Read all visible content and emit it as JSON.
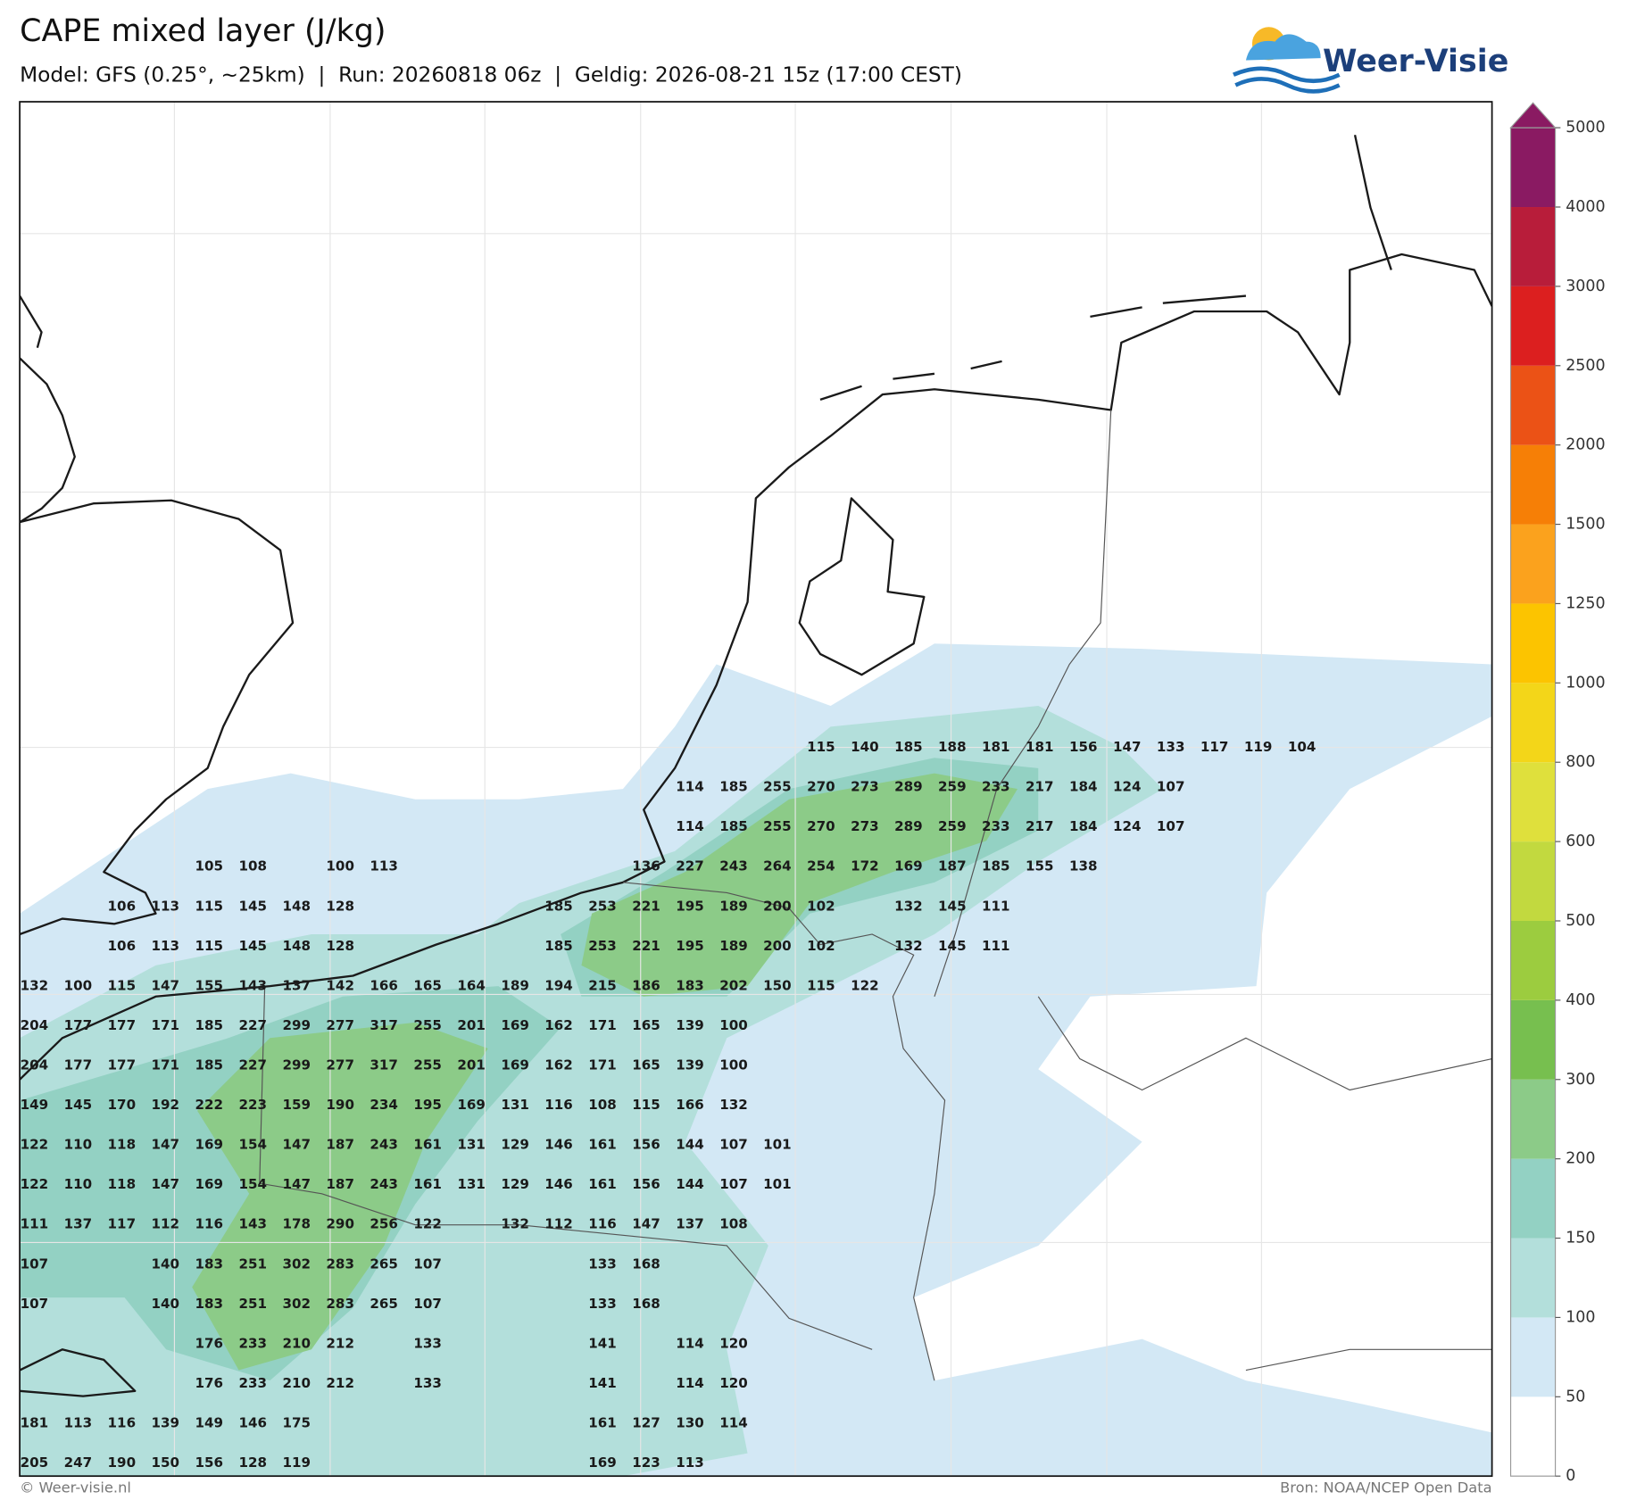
{
  "header": {
    "title": "CAPE mixed layer (J/kg)",
    "subtitle": "Model: GFS (0.25°, ~25km)  |  Run: 20260818 06z  |  Geldig: 2026-08-21 15z (17:00 CEST)",
    "logo": "Weer-Visie"
  },
  "colorbar": {
    "levels": [
      0,
      50,
      100,
      150,
      200,
      300,
      400,
      500,
      600,
      800,
      1000,
      1250,
      1500,
      2000,
      2500,
      3000,
      4000,
      5000
    ],
    "colors": [
      "#ffffff",
      "#d3e8f5",
      "#b3dfdb",
      "#93d1c3",
      "#8ccb88",
      "#77bf4f",
      "#9ccc3f",
      "#c2d93f",
      "#dfe03c",
      "#f3d619",
      "#fcc400",
      "#fba21d",
      "#f67f06",
      "#eb5216",
      "#dc1f1f",
      "#b81d3a",
      "#8a1a62"
    ]
  },
  "value_labels": {
    "rows": [
      [
        null,
        null,
        null,
        null,
        null,
        null,
        null,
        null,
        null,
        null,
        null,
        null,
        null,
        null,
        null,
        null,
        null,
        null,
        115,
        140,
        185,
        188,
        181,
        181,
        156,
        147,
        133,
        117,
        119,
        104
      ],
      [
        null,
        null,
        null,
        null,
        null,
        null,
        null,
        null,
        null,
        null,
        null,
        null,
        null,
        null,
        null,
        114,
        185,
        255,
        270,
        273,
        289,
        259,
        233,
        217,
        184,
        124,
        107,
        null,
        null,
        null
      ],
      [
        null,
        null,
        null,
        null,
        null,
        null,
        null,
        null,
        null,
        null,
        null,
        null,
        null,
        null,
        null,
        114,
        185,
        255,
        270,
        273,
        289,
        259,
        233,
        217,
        184,
        124,
        107,
        null,
        null,
        null
      ],
      [
        null,
        null,
        null,
        null,
        105,
        108,
        null,
        100,
        113,
        null,
        null,
        null,
        null,
        null,
        136,
        227,
        243,
        264,
        254,
        172,
        169,
        187,
        185,
        155,
        138,
        null,
        null,
        null,
        null,
        null
      ],
      [
        null,
        null,
        106,
        113,
        115,
        145,
        148,
        128,
        null,
        null,
        null,
        null,
        185,
        253,
        221,
        195,
        189,
        200,
        102,
        null,
        132,
        145,
        111,
        null,
        null,
        null,
        null,
        null,
        null,
        null
      ],
      [
        null,
        null,
        106,
        113,
        115,
        145,
        148,
        128,
        null,
        null,
        null,
        null,
        185,
        253,
        221,
        195,
        189,
        200,
        102,
        null,
        132,
        145,
        111,
        null,
        null,
        null,
        null,
        null,
        null,
        null
      ],
      [
        132,
        100,
        115,
        147,
        155,
        143,
        137,
        142,
        166,
        165,
        164,
        189,
        194,
        215,
        186,
        183,
        202,
        150,
        115,
        122,
        null,
        null,
        null,
        null,
        null,
        null,
        null,
        null,
        null,
        null
      ],
      [
        204,
        177,
        177,
        171,
        185,
        227,
        299,
        277,
        317,
        255,
        201,
        169,
        162,
        171,
        165,
        139,
        100,
        null,
        null,
        null,
        null,
        null,
        null,
        null,
        null,
        null,
        null,
        null,
        null,
        null
      ],
      [
        204,
        177,
        177,
        171,
        185,
        227,
        299,
        277,
        317,
        255,
        201,
        169,
        162,
        171,
        165,
        139,
        100,
        null,
        null,
        null,
        null,
        null,
        null,
        null,
        null,
        null,
        null,
        null,
        null,
        null
      ],
      [
        149,
        145,
        170,
        192,
        222,
        223,
        159,
        190,
        234,
        195,
        169,
        131,
        116,
        108,
        115,
        166,
        132,
        null,
        null,
        null,
        null,
        null,
        null,
        null,
        null,
        null,
        null,
        null,
        null,
        null
      ],
      [
        122,
        110,
        118,
        147,
        169,
        154,
        147,
        187,
        243,
        161,
        131,
        129,
        146,
        161,
        156,
        144,
        107,
        101,
        null,
        null,
        null,
        null,
        null,
        null,
        null,
        null,
        null,
        null,
        null,
        null
      ],
      [
        122,
        110,
        118,
        147,
        169,
        154,
        147,
        187,
        243,
        161,
        131,
        129,
        146,
        161,
        156,
        144,
        107,
        101,
        null,
        null,
        null,
        null,
        null,
        null,
        null,
        null,
        null,
        null,
        null,
        null
      ],
      [
        111,
        137,
        117,
        112,
        116,
        143,
        178,
        290,
        256,
        122,
        null,
        132,
        112,
        116,
        147,
        137,
        108,
        null,
        null,
        null,
        null,
        null,
        null,
        null,
        null,
        null,
        null,
        null,
        null,
        null
      ],
      [
        107,
        null,
        null,
        140,
        183,
        251,
        302,
        283,
        265,
        107,
        null,
        null,
        null,
        133,
        168,
        null,
        null,
        null,
        null,
        null,
        null,
        null,
        null,
        null,
        null,
        null,
        null,
        null,
        null,
        null
      ],
      [
        107,
        null,
        null,
        140,
        183,
        251,
        302,
        283,
        265,
        107,
        null,
        null,
        null,
        133,
        168,
        null,
        null,
        null,
        null,
        null,
        null,
        null,
        null,
        null,
        null,
        null,
        null,
        null,
        null,
        null
      ],
      [
        null,
        null,
        null,
        null,
        176,
        233,
        210,
        212,
        null,
        133,
        null,
        null,
        null,
        141,
        null,
        114,
        120,
        null,
        null,
        null,
        null,
        null,
        null,
        null,
        null,
        null,
        null,
        null,
        null,
        null
      ],
      [
        null,
        null,
        null,
        null,
        176,
        233,
        210,
        212,
        null,
        133,
        null,
        null,
        null,
        141,
        null,
        114,
        120,
        null,
        null,
        null,
        null,
        null,
        null,
        null,
        null,
        null,
        null,
        null,
        null,
        null
      ],
      [
        181,
        113,
        116,
        139,
        149,
        146,
        175,
        null,
        null,
        null,
        null,
        null,
        null,
        161,
        127,
        130,
        114,
        null,
        null,
        null,
        null,
        null,
        null,
        null,
        null,
        null,
        null,
        null,
        null,
        null
      ],
      [
        205,
        247,
        190,
        150,
        156,
        128,
        119,
        null,
        null,
        null,
        null,
        null,
        null,
        169,
        123,
        113,
        null,
        null,
        null,
        null,
        null,
        null,
        null,
        null,
        null,
        null,
        null,
        null,
        null,
        null
      ]
    ]
  },
  "footer": {
    "left": "© Weer-visie.nl",
    "right": "Bron: NOAA/NCEP Open Data"
  }
}
